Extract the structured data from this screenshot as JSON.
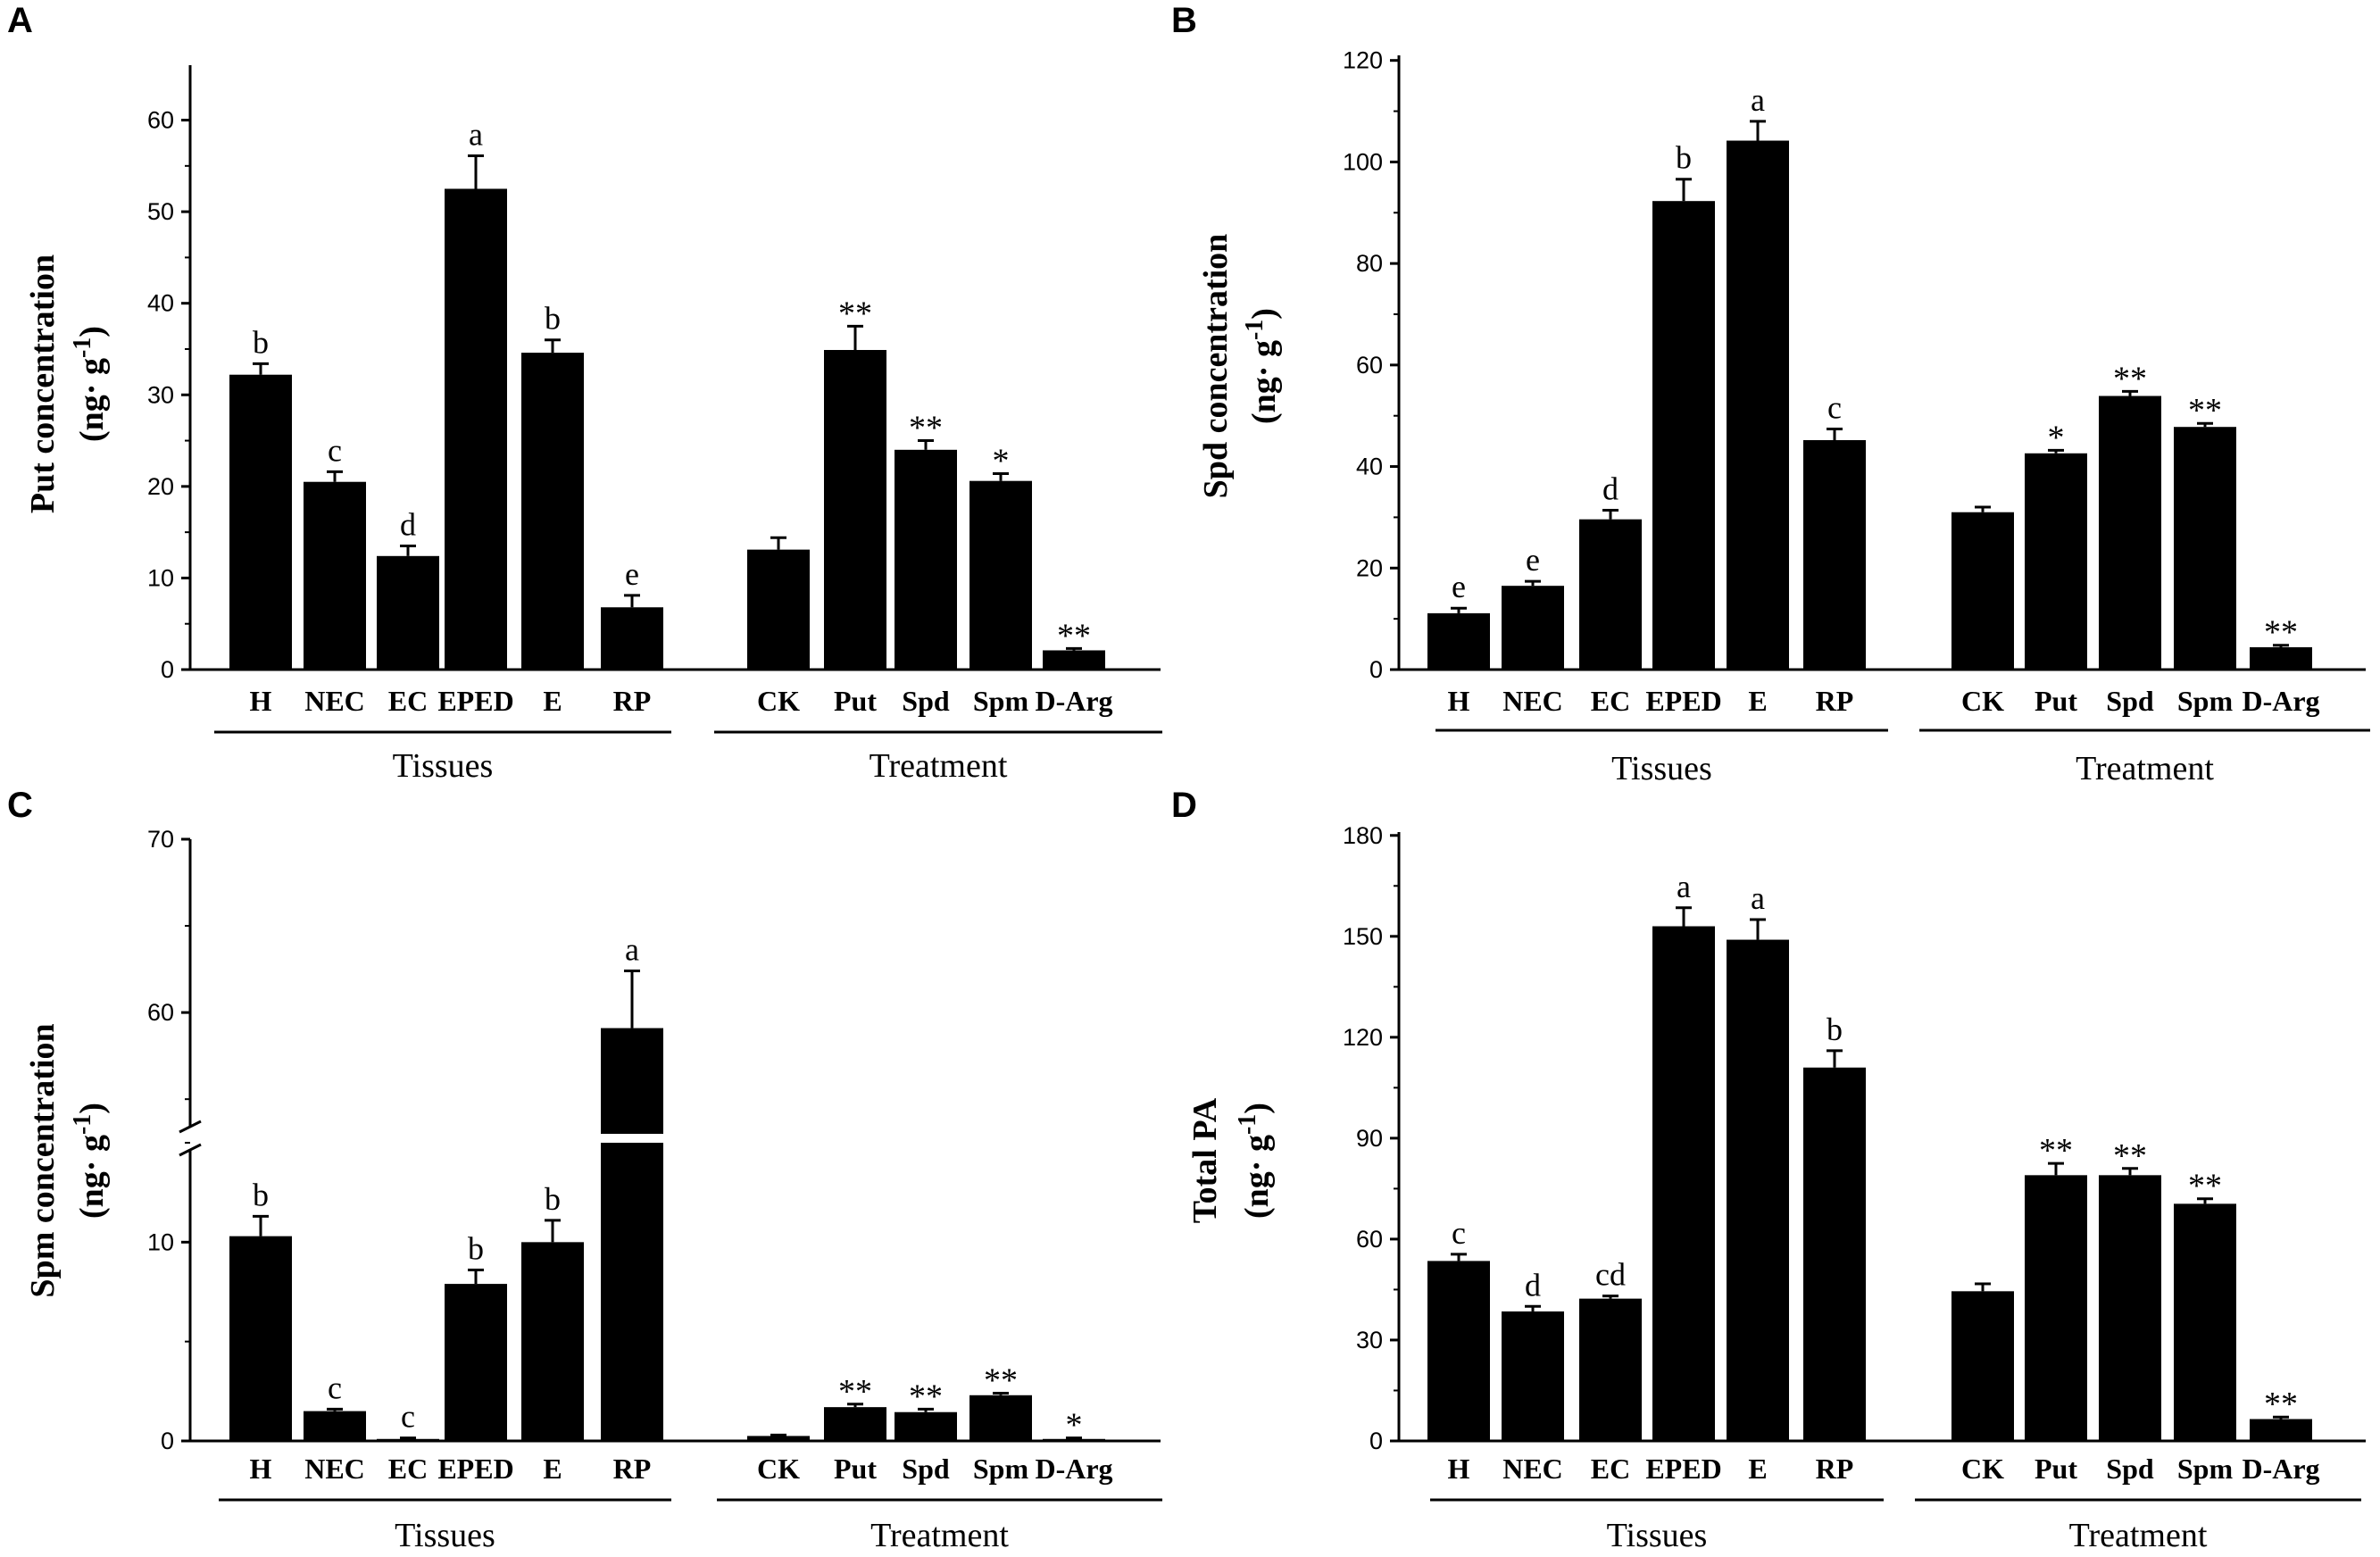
{
  "chart_data": [
    {
      "type": "bar",
      "panel": "A",
      "ylabel_main": "Put concentration",
      "ylabel_unit": "(ng· g",
      "ylabel_sup": "-1",
      "ylabel_close": ")",
      "ylim": [
        0,
        66
      ],
      "yticks": [
        0,
        10,
        20,
        30,
        40,
        50,
        60
      ],
      "groups": [
        {
          "name": "Tissues",
          "categories": [
            "H",
            "NEC",
            "EC",
            "EPED",
            "E",
            "RP"
          ],
          "values": [
            32.2,
            20.5,
            12.4,
            52.5,
            34.6,
            6.8
          ],
          "errors": [
            1.2,
            1.1,
            1.1,
            3.6,
            1.4,
            1.3
          ],
          "annotations": [
            "b",
            "c",
            "d",
            "a",
            "b",
            "e"
          ]
        },
        {
          "name": "Treatment",
          "categories": [
            "CK",
            "Put",
            "Spd",
            "Spm",
            "D-Arg"
          ],
          "values": [
            13.1,
            34.9,
            24.0,
            20.6,
            2.1
          ],
          "errors": [
            1.3,
            2.6,
            1.0,
            0.8,
            0.2
          ],
          "annotations": [
            "",
            "**",
            "**",
            "*",
            "**"
          ]
        }
      ]
    },
    {
      "type": "bar",
      "panel": "B",
      "ylabel_main": "Spd concentration",
      "ylabel_unit": "(ng· g",
      "ylabel_sup": "-1",
      "ylabel_close": ")",
      "ylim": [
        0,
        121
      ],
      "yticks": [
        0,
        20,
        40,
        60,
        80,
        100,
        120
      ],
      "groups": [
        {
          "name": "Tissues",
          "categories": [
            "H",
            "NEC",
            "EC",
            "EPED",
            "E",
            "RP"
          ],
          "values": [
            11.1,
            16.5,
            29.6,
            92.3,
            104.2,
            45.2
          ],
          "errors": [
            1.0,
            0.9,
            1.8,
            4.3,
            3.8,
            2.2
          ],
          "annotations": [
            "e",
            "e",
            "d",
            "b",
            "a",
            "c"
          ]
        },
        {
          "name": "Treatment",
          "categories": [
            "CK",
            "Put",
            "Spd",
            "Spm",
            "D-Arg"
          ],
          "values": [
            31.0,
            42.6,
            53.9,
            47.8,
            4.4
          ],
          "errors": [
            1.0,
            0.6,
            0.9,
            0.7,
            0.4
          ],
          "annotations": [
            "",
            "*",
            "**",
            "**",
            "**"
          ]
        }
      ]
    },
    {
      "type": "bar",
      "panel": "C",
      "ylabel_main": "Spm concentration",
      "ylabel_unit": "(ng· g",
      "ylabel_sup": "-1",
      "ylabel_close": ")",
      "y_axis_break": [
        15,
        53
      ],
      "yticks": [
        10,
        60,
        70
      ],
      "yticks_lower": [
        10
      ],
      "yticks_upper": [
        60,
        70
      ],
      "groups": [
        {
          "name": "Tissues",
          "categories": [
            "H",
            "NEC",
            "EC",
            "EPED",
            "E",
            "RP"
          ],
          "values": [
            10.3,
            1.5,
            0.1,
            7.9,
            10.0,
            59.1
          ],
          "errors": [
            1.0,
            0.1,
            0.05,
            0.7,
            1.1,
            3.3
          ],
          "annotations": [
            "b",
            "c",
            "c",
            "b",
            "b",
            "a"
          ]
        },
        {
          "name": "Treatment",
          "categories": [
            "CK",
            "Put",
            "Spd",
            "Spm",
            "D-Arg"
          ],
          "values": [
            0.25,
            1.7,
            1.45,
            2.3,
            0.1
          ],
          "errors": [
            0.05,
            0.15,
            0.15,
            0.1,
            0.05
          ],
          "annotations": [
            "",
            "**",
            "**",
            "**",
            "*"
          ]
        }
      ]
    },
    {
      "type": "bar",
      "panel": "D",
      "ylabel_main": "Total PA",
      "ylabel_unit": "(ng· g",
      "ylabel_sup": "-1",
      "ylabel_close": ")",
      "ylim": [
        0,
        181
      ],
      "yticks": [
        0,
        30,
        60,
        90,
        120,
        150,
        180
      ],
      "groups": [
        {
          "name": "Tissues",
          "categories": [
            "H",
            "NEC",
            "EC",
            "EPED",
            "E",
            "RP"
          ],
          "values": [
            53.5,
            38.5,
            42.3,
            153.0,
            149.0,
            111.0
          ],
          "errors": [
            2.0,
            1.5,
            0.8,
            5.5,
            6.0,
            5.0
          ],
          "annotations": [
            "c",
            "d",
            "cd",
            "a",
            "a",
            "b"
          ]
        },
        {
          "name": "Treatment",
          "categories": [
            "CK",
            "Put",
            "Spd",
            "Spm",
            "D-Arg"
          ],
          "values": [
            44.5,
            79.0,
            79.0,
            70.5,
            6.5
          ],
          "errors": [
            2.2,
            3.5,
            2.0,
            1.5,
            0.6
          ],
          "annotations": [
            "",
            "**",
            "**",
            "**",
            "**"
          ]
        }
      ]
    }
  ]
}
